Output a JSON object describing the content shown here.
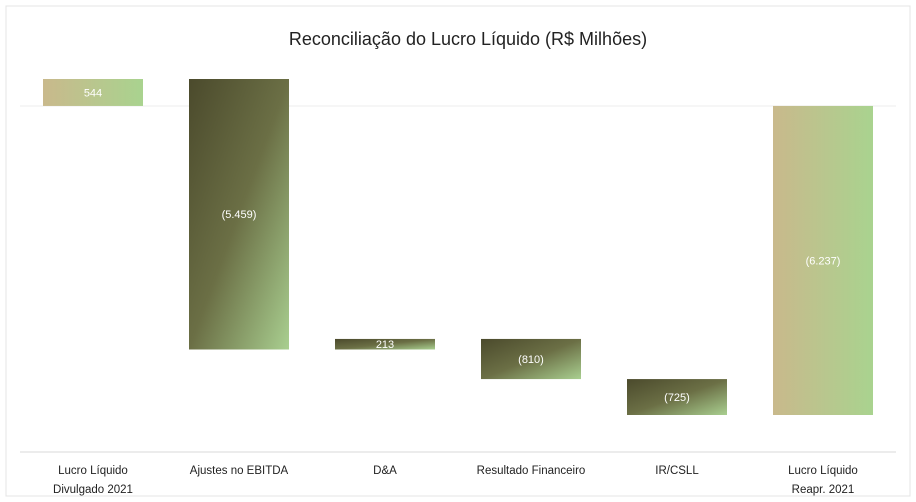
{
  "chart_data": {
    "type": "waterfall",
    "title": "Reconciliação do Lucro Líquido (R$ Milhões)",
    "categories": [
      "Lucro Líquido\nDivulgado 2021",
      "Ajustes no EBITDA",
      "D&A",
      "Resultado Financeiro",
      "IR/CSLL",
      "Lucro Líquido\nReapr. 2021"
    ],
    "values": [
      544,
      -5459,
      213,
      -810,
      -725,
      -6237
    ],
    "value_labels": [
      "544",
      "(5.459)",
      "213",
      "(810)",
      "(725)",
      "(6.237)"
    ]
  }
}
